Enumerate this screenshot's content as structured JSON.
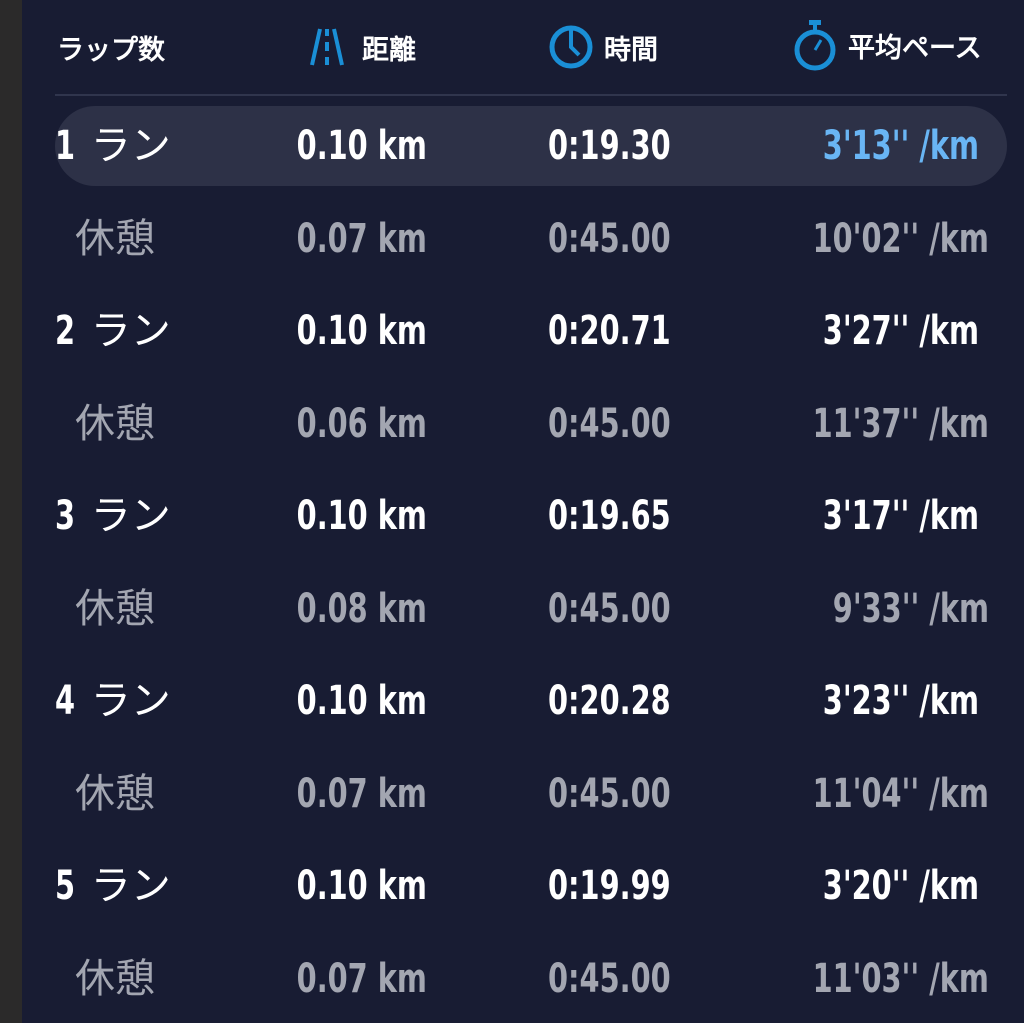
{
  "header": {
    "lap": "ラップ数",
    "distance": "距離",
    "time": "時間",
    "pace": "平均ペース",
    "icons": {
      "distance": "road-icon",
      "time": "clock-icon",
      "pace": "stopwatch-icon"
    },
    "accent_color": "#1a8fd6"
  },
  "highlight_color": "#69b5f4",
  "laps": [
    {
      "num": "1",
      "type": "ラン",
      "distance": "0.10 km",
      "time": "0:19.30",
      "pace": "3'13'' /km",
      "selected": true
    },
    {
      "num": "",
      "type": "休憩",
      "distance": "0.07 km",
      "time": "0:45.00",
      "pace": "10'02'' /km"
    },
    {
      "num": "2",
      "type": "ラン",
      "distance": "0.10 km",
      "time": "0:20.71",
      "pace": "3'27'' /km"
    },
    {
      "num": "",
      "type": "休憩",
      "distance": "0.06 km",
      "time": "0:45.00",
      "pace": "11'37'' /km"
    },
    {
      "num": "3",
      "type": "ラン",
      "distance": "0.10 km",
      "time": "0:19.65",
      "pace": "3'17'' /km"
    },
    {
      "num": "",
      "type": "休憩",
      "distance": "0.08 km",
      "time": "0:45.00",
      "pace": "9'33'' /km"
    },
    {
      "num": "4",
      "type": "ラン",
      "distance": "0.10 km",
      "time": "0:20.28",
      "pace": "3'23'' /km"
    },
    {
      "num": "",
      "type": "休憩",
      "distance": "0.07 km",
      "time": "0:45.00",
      "pace": "11'04'' /km"
    },
    {
      "num": "5",
      "type": "ラン",
      "distance": "0.10 km",
      "time": "0:19.99",
      "pace": "3'20'' /km"
    },
    {
      "num": "",
      "type": "休憩",
      "distance": "0.07 km",
      "time": "0:45.00",
      "pace": "11'03'' /km"
    }
  ]
}
